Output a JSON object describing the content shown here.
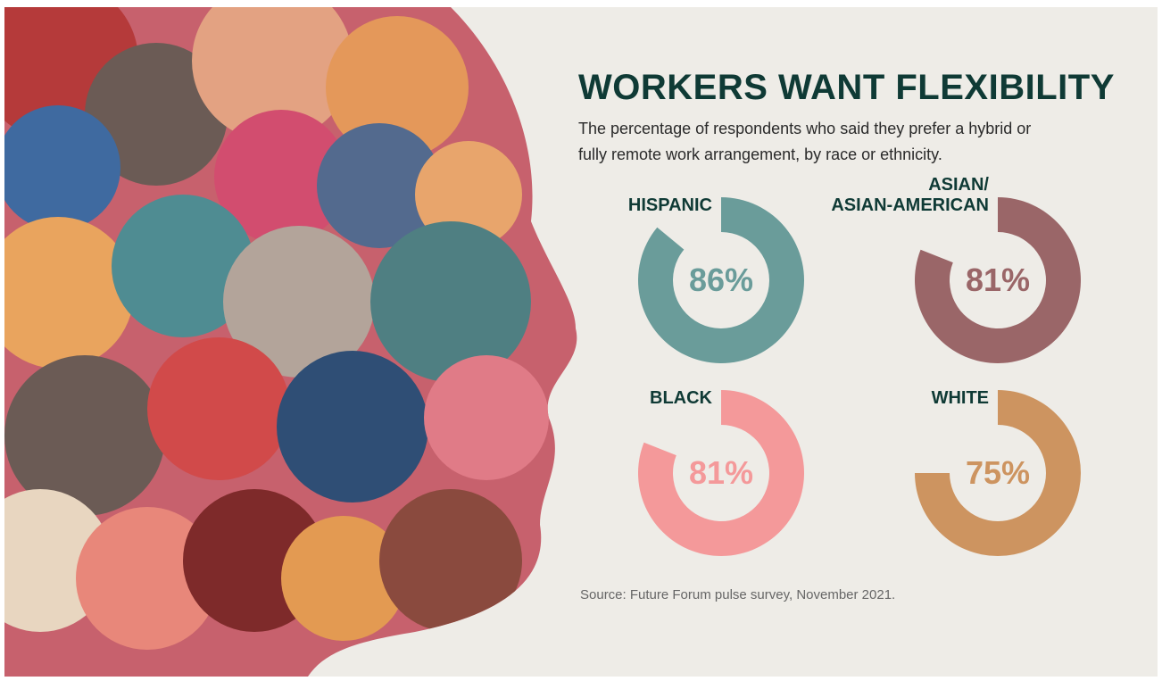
{
  "chart_data": {
    "type": "donut",
    "title": "WORKERS WANT FLEXIBILITY",
    "subtitle": "The percentage of respondents who said they prefer a hybrid or fully remote work arrangement, by race or ethnicity.",
    "categories": [
      "HISPANIC",
      "ASIAN/\nASIAN-AMERICAN",
      "BLACK",
      "WHITE"
    ],
    "values": [
      86,
      81,
      81,
      75
    ],
    "value_labels": [
      "86%",
      "81%",
      "81%",
      "75%"
    ],
    "colors": [
      "#6a9c9a",
      "#9a6668",
      "#f4999a",
      "#cd9460"
    ],
    "ylim": [
      0,
      100
    ],
    "source": "Source: Future Forum pulse survey, November 2021."
  }
}
